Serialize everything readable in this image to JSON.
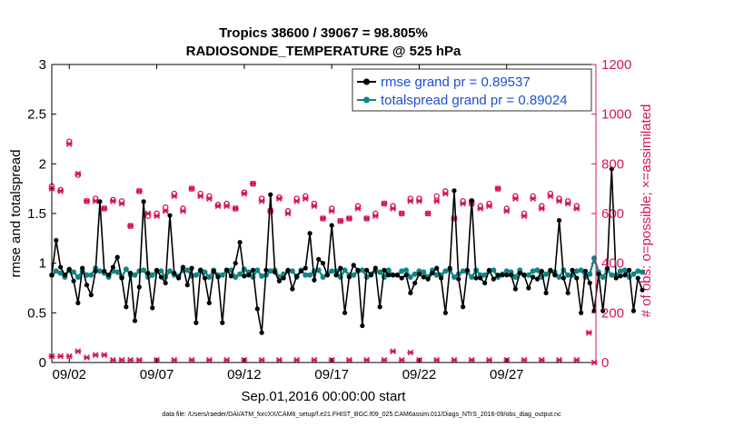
{
  "chart_data": {
    "type": "line",
    "title_line1": "Tropics 38600 / 39067 = 98.805%",
    "title_line2": "RADIOSONDE_TEMPERATURE @ 525 hPa",
    "xlabel": "Sep.01,2016 00:00:00 start",
    "ylabel_left": "rmse and totalspread",
    "ylabel_right": "# of obs: o=possible; ×=assimilated",
    "footer": "data file: /Users/raeder/DAI/ATM_forcXX/CAM6_setup/f.e21.FHIST_BGC.f09_025.CAM6assim.011/Diags_NTrS_2016-09/obs_diag_output.nc",
    "xlim": [
      1,
      32.1
    ],
    "ylim_left": [
      0,
      3
    ],
    "ylim_right": [
      0,
      1200
    ],
    "x_ticks": [
      2,
      7,
      12,
      17,
      22,
      27
    ],
    "x_tick_labels": [
      "09/02",
      "09/07",
      "09/12",
      "09/17",
      "09/22",
      "09/27"
    ],
    "y_left_ticks": [
      0,
      0.5,
      1,
      1.5,
      2,
      2.5,
      3
    ],
    "y_left_tick_labels": [
      "0",
      "0.5",
      "1",
      "1.5",
      "2",
      "2.5",
      "3"
    ],
    "y_right_ticks": [
      0,
      200,
      400,
      600,
      800,
      1000,
      1200
    ],
    "y_right_tick_labels": [
      "0",
      "200",
      "400",
      "600",
      "800",
      "1000",
      "1200"
    ],
    "legend": {
      "position": "top-right",
      "entries": [
        "rmse grand pr = 0.89537",
        "totalspread grand pr = 0.89024"
      ]
    },
    "colors": {
      "rmse": "#000000",
      "spread": "#0f8585",
      "obs": "#d4145a",
      "legend_text": "#1f4fd0"
    },
    "series": [
      {
        "name": "rmse",
        "x_start": 1.0,
        "x_step": 0.25,
        "values": [
          0.88,
          1.23,
          0.96,
          0.88,
          0.94,
          0.82,
          0.6,
          0.95,
          0.78,
          0.68,
          0.92,
          1.62,
          0.92,
          0.88,
          0.96,
          1.06,
          0.85,
          0.56,
          0.9,
          0.42,
          0.76,
          1.62,
          0.9,
          0.55,
          0.93,
          0.86,
          0.8,
          1.48,
          0.9,
          0.85,
          0.96,
          0.78,
          0.95,
          0.4,
          0.93,
          0.85,
          0.6,
          0.92,
          0.86,
          0.4,
          0.93,
          0.87,
          1.0,
          1.21,
          0.87,
          0.88,
          0.93,
          0.54,
          0.3,
          0.93,
          1.69,
          0.91,
          0.82,
          0.85,
          0.93,
          0.74,
          0.87,
          0.92,
          0.95,
          1.3,
          0.83,
          1.04,
          1.0,
          0.88,
          1.38,
          0.88,
          0.95,
          0.5,
          0.86,
          0.98,
          0.93,
          0.37,
          0.93,
          0.88,
          0.95,
          0.56,
          0.93,
          0.88,
          0.88,
          0.88,
          0.85,
          0.88,
          0.7,
          0.8,
          0.89,
          0.86,
          0.84,
          0.9,
          0.95,
          0.85,
          0.5,
          0.95,
          1.73,
          0.84,
          0.56,
          0.93,
          1.63,
          0.85,
          0.85,
          0.8,
          0.93,
          0.84,
          0.88,
          0.88,
          0.88,
          0.88,
          0.74,
          0.9,
          0.88,
          0.75,
          0.86,
          0.84,
          0.92,
          0.7,
          0.93,
          0.88,
          1.43,
          0.85,
          0.7,
          0.93,
          0.85,
          0.5,
          0.92,
          0.8,
          0.52,
          0.89,
          0.52,
          0.95,
          1.95,
          0.85,
          0.87,
          0.88,
          0.93,
          0.52,
          0.85,
          0.73
        ],
        "marker": "filled-circle"
      },
      {
        "name": "totalspread",
        "x_start": 1.0,
        "x_step": 0.25,
        "values": [
          0.88,
          0.92,
          0.9,
          0.86,
          0.93,
          0.91,
          0.86,
          0.92,
          0.88,
          0.88,
          0.95,
          0.92,
          0.9,
          0.86,
          0.92,
          0.91,
          0.86,
          0.94,
          0.88,
          0.88,
          0.92,
          0.93,
          0.86,
          0.88,
          0.92,
          0.92,
          0.86,
          0.92,
          0.88,
          0.87,
          0.93,
          0.93,
          0.87,
          0.88,
          0.93,
          0.91,
          0.86,
          0.93,
          0.88,
          0.88,
          0.93,
          0.93,
          0.86,
          0.89,
          0.94,
          0.91,
          0.86,
          0.93,
          0.87,
          0.88,
          0.92,
          0.93,
          0.86,
          0.89,
          0.92,
          0.92,
          0.86,
          0.93,
          0.88,
          0.88,
          0.92,
          0.93,
          0.86,
          0.89,
          0.92,
          0.92,
          0.86,
          0.93,
          0.88,
          0.88,
          0.92,
          0.93,
          0.86,
          0.89,
          0.92,
          0.91,
          0.86,
          0.93,
          0.88,
          0.88,
          0.92,
          0.93,
          0.86,
          0.89,
          0.92,
          0.91,
          0.86,
          0.93,
          0.88,
          0.88,
          0.92,
          0.93,
          0.86,
          0.89,
          0.92,
          0.91,
          0.86,
          0.93,
          0.88,
          0.88,
          0.92,
          0.93,
          0.86,
          0.89,
          0.92,
          0.91,
          0.86,
          0.93,
          0.88,
          0.88,
          0.92,
          0.93,
          0.86,
          0.89,
          0.92,
          0.91,
          0.86,
          0.93,
          0.88,
          0.88,
          0.92,
          0.93,
          0.86,
          0.89,
          1.05,
          0.91,
          0.86,
          0.93,
          0.88,
          0.88,
          0.92,
          0.93,
          0.86,
          0.89,
          0.92,
          0.91
        ],
        "marker": "filled-circle"
      },
      {
        "name": "obs possible",
        "axis": "right",
        "points": [
          [
            1,
            710
          ],
          [
            1.5,
            695
          ],
          [
            2.0,
            890
          ],
          [
            2.5,
            755
          ],
          [
            3.0,
            650
          ],
          [
            3.5,
            660
          ],
          [
            4.0,
            620
          ],
          [
            4.5,
            655
          ],
          [
            5.0,
            650
          ],
          [
            5.5,
            550
          ],
          [
            6.0,
            690
          ],
          [
            6.5,
            590
          ],
          [
            7.0,
            600
          ],
          [
            7.5,
            625
          ],
          [
            8.0,
            680
          ],
          [
            8.5,
            620
          ],
          [
            9.0,
            700
          ],
          [
            9.5,
            680
          ],
          [
            10,
            670
          ],
          [
            10.5,
            635
          ],
          [
            11,
            640
          ],
          [
            11.5,
            620
          ],
          [
            12,
            685
          ],
          [
            12.5,
            720
          ],
          [
            13,
            660
          ],
          [
            13.5,
            610
          ],
          [
            14,
            665
          ],
          [
            14.5,
            610
          ],
          [
            15,
            660
          ],
          [
            15.5,
            670
          ],
          [
            16,
            640
          ],
          [
            16.5,
            580
          ],
          [
            17,
            620
          ],
          [
            17.5,
            570
          ],
          [
            18,
            580
          ],
          [
            18.5,
            630
          ],
          [
            19,
            580
          ],
          [
            19.5,
            600
          ],
          [
            20,
            640
          ],
          [
            20.5,
            630
          ],
          [
            21,
            600
          ],
          [
            21.5,
            660
          ],
          [
            22,
            660
          ],
          [
            22.5,
            600
          ],
          [
            23,
            670
          ],
          [
            23.5,
            690
          ],
          [
            24,
            580
          ],
          [
            24.5,
            650
          ],
          [
            25,
            650
          ],
          [
            25.5,
            630
          ],
          [
            26,
            640
          ],
          [
            26.5,
            700
          ],
          [
            27,
            620
          ],
          [
            27.5,
            670
          ],
          [
            28,
            600
          ],
          [
            28.5,
            670
          ],
          [
            29,
            630
          ],
          [
            29.5,
            680
          ],
          [
            30,
            660
          ],
          [
            30.5,
            650
          ],
          [
            31,
            630
          ]
        ]
      },
      {
        "name": "obs assimilated",
        "axis": "right",
        "points": [
          [
            1,
            700
          ],
          [
            1.5,
            690
          ],
          [
            2.0,
            880
          ],
          [
            2.5,
            760
          ],
          [
            3.0,
            650
          ],
          [
            3.5,
            650
          ],
          [
            4.0,
            620
          ],
          [
            4.5,
            650
          ],
          [
            5.0,
            640
          ],
          [
            5.5,
            550
          ],
          [
            6.0,
            690
          ],
          [
            6.5,
            600
          ],
          [
            7.0,
            590
          ],
          [
            7.5,
            610
          ],
          [
            8.0,
            670
          ],
          [
            8.5,
            610
          ],
          [
            9.0,
            700
          ],
          [
            9.5,
            670
          ],
          [
            10,
            660
          ],
          [
            10.5,
            630
          ],
          [
            11,
            630
          ],
          [
            11.5,
            620
          ],
          [
            12,
            680
          ],
          [
            12.5,
            720
          ],
          [
            13,
            650
          ],
          [
            13.5,
            610
          ],
          [
            14,
            660
          ],
          [
            14.5,
            600
          ],
          [
            15,
            650
          ],
          [
            15.5,
            660
          ],
          [
            16,
            630
          ],
          [
            16.5,
            580
          ],
          [
            17,
            610
          ],
          [
            17.5,
            570
          ],
          [
            18,
            580
          ],
          [
            18.5,
            620
          ],
          [
            19,
            580
          ],
          [
            19.5,
            590
          ],
          [
            20,
            640
          ],
          [
            20.5,
            620
          ],
          [
            21,
            600
          ],
          [
            21.5,
            650
          ],
          [
            22,
            650
          ],
          [
            22.5,
            600
          ],
          [
            23,
            650
          ],
          [
            23.5,
            680
          ],
          [
            24,
            580
          ],
          [
            24.5,
            640
          ],
          [
            25,
            640
          ],
          [
            25.5,
            620
          ],
          [
            26,
            630
          ],
          [
            26.5,
            700
          ],
          [
            27,
            610
          ],
          [
            27.5,
            660
          ],
          [
            28,
            590
          ],
          [
            28.5,
            660
          ],
          [
            29,
            620
          ],
          [
            29.5,
            670
          ],
          [
            30,
            650
          ],
          [
            30.5,
            640
          ],
          [
            31,
            620
          ],
          [
            1,
            25
          ],
          [
            1.5,
            25
          ],
          [
            2,
            25
          ],
          [
            2.5,
            45
          ],
          [
            3,
            20
          ],
          [
            3.5,
            30
          ],
          [
            4,
            30
          ],
          [
            4.5,
            10
          ],
          [
            5,
            10
          ],
          [
            5.5,
            10
          ],
          [
            6,
            10
          ],
          [
            7,
            10
          ],
          [
            8,
            10
          ],
          [
            9,
            10
          ],
          [
            10,
            10
          ],
          [
            11,
            10
          ],
          [
            12,
            10
          ],
          [
            13,
            10
          ],
          [
            14,
            10
          ],
          [
            15,
            10
          ],
          [
            16,
            10
          ],
          [
            17,
            10
          ],
          [
            18,
            10
          ],
          [
            19,
            10
          ],
          [
            20,
            10
          ],
          [
            20.5,
            45
          ],
          [
            21,
            10
          ],
          [
            21.5,
            40
          ],
          [
            22,
            10
          ],
          [
            23,
            10
          ],
          [
            24,
            10
          ],
          [
            25,
            10
          ],
          [
            26,
            10
          ],
          [
            27,
            10
          ],
          [
            28,
            10
          ],
          [
            29,
            10
          ],
          [
            30,
            10
          ],
          [
            31,
            10
          ],
          [
            31.7,
            120
          ],
          [
            32,
            0
          ]
        ]
      }
    ]
  }
}
